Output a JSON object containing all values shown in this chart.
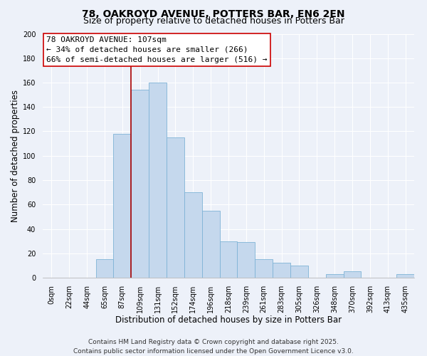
{
  "title": "78, OAKROYD AVENUE, POTTERS BAR, EN6 2EN",
  "subtitle": "Size of property relative to detached houses in Potters Bar",
  "xlabel": "Distribution of detached houses by size in Potters Bar",
  "ylabel": "Number of detached properties",
  "bin_labels": [
    "0sqm",
    "22sqm",
    "44sqm",
    "65sqm",
    "87sqm",
    "109sqm",
    "131sqm",
    "152sqm",
    "174sqm",
    "196sqm",
    "218sqm",
    "239sqm",
    "261sqm",
    "283sqm",
    "305sqm",
    "326sqm",
    "348sqm",
    "370sqm",
    "392sqm",
    "413sqm",
    "435sqm"
  ],
  "bar_values": [
    0,
    0,
    0,
    15,
    118,
    154,
    160,
    115,
    70,
    55,
    30,
    29,
    15,
    12,
    10,
    0,
    3,
    5,
    0,
    0,
    3
  ],
  "bar_color": "#c5d8ed",
  "bar_edge_color": "#7fb3d6",
  "vline_x_index": 5,
  "vline_color": "#aa0000",
  "ylim": [
    0,
    200
  ],
  "yticks": [
    0,
    20,
    40,
    60,
    80,
    100,
    120,
    140,
    160,
    180,
    200
  ],
  "annotation_line1": "78 OAKROYD AVENUE: 107sqm",
  "annotation_line2": "← 34% of detached houses are smaller (266)",
  "annotation_line3": "66% of semi-detached houses are larger (516) →",
  "annotation_box_color": "#ffffff",
  "annotation_box_edge": "#cc0000",
  "footer_line1": "Contains HM Land Registry data © Crown copyright and database right 2025.",
  "footer_line2": "Contains public sector information licensed under the Open Government Licence v3.0.",
  "background_color": "#edf1f9",
  "grid_color": "#ffffff",
  "title_fontsize": 10,
  "subtitle_fontsize": 9,
  "axis_label_fontsize": 8.5,
  "tick_fontsize": 7,
  "annotation_fontsize": 8,
  "footer_fontsize": 6.5
}
